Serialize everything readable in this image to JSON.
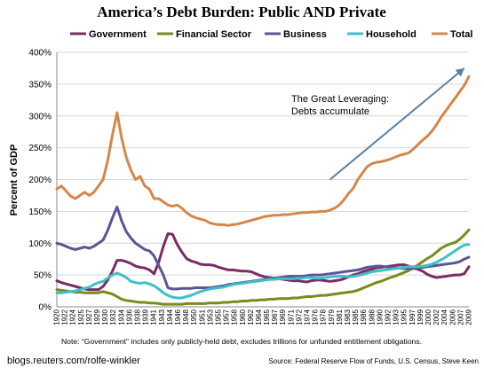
{
  "chart_data": {
    "type": "line",
    "title": "America’s Debt Burden:  Public AND Private",
    "xlabel": "",
    "ylabel": "Percent of GDP",
    "ylim": [
      0,
      400
    ],
    "y_ticks": [
      "0%",
      "50%",
      "100%",
      "150%",
      "200%",
      "250%",
      "300%",
      "350%",
      "400%"
    ],
    "x_ticks": [
      "1920",
      "1922",
      "1924",
      "1925",
      "1927",
      "1929",
      "1930",
      "1932",
      "1934",
      "1936",
      "1938",
      "1939",
      "1941",
      "1943",
      "1944",
      "1946",
      "1948",
      "1950",
      "1951",
      "1953",
      "1955",
      "1957",
      "1958",
      "1960",
      "1962",
      "1964",
      "1965",
      "1967",
      "1969",
      "1971",
      "1972",
      "1974",
      "1976",
      "1978",
      "1979",
      "1981",
      "1983",
      "1985",
      "1986",
      "1988",
      "1990",
      "1992",
      "1993",
      "1995",
      "1997",
      "1999",
      "2000",
      "2002",
      "2004",
      "2006",
      "2007",
      "2009"
    ],
    "legend_position": "top",
    "annotation": {
      "lines": [
        "The Great Leveraging:",
        "Debts accumulate"
      ],
      "arrow_from": [
        1979,
        200
      ],
      "arrow_to": [
        2008,
        375
      ]
    },
    "x": [
      1920,
      1921,
      1922,
      1923,
      1924,
      1925,
      1926,
      1927,
      1928,
      1929,
      1930,
      1931,
      1932,
      1933,
      1934,
      1935,
      1936,
      1937,
      1938,
      1939,
      1940,
      1941,
      1942,
      1943,
      1944,
      1945,
      1946,
      1947,
      1948,
      1949,
      1950,
      1951,
      1952,
      1953,
      1954,
      1955,
      1956,
      1957,
      1958,
      1959,
      1960,
      1961,
      1962,
      1963,
      1964,
      1965,
      1966,
      1967,
      1968,
      1969,
      1970,
      1971,
      1972,
      1973,
      1974,
      1975,
      1976,
      1977,
      1978,
      1979,
      1980,
      1981,
      1982,
      1983,
      1984,
      1985,
      1986,
      1987,
      1988,
      1989,
      1990,
      1991,
      1992,
      1993,
      1994,
      1995,
      1996,
      1997,
      1998,
      1999,
      2000,
      2001,
      2002,
      2003,
      2004,
      2005,
      2006,
      2007,
      2008,
      2009
    ],
    "series": [
      {
        "name": "Government",
        "color": "#7b2c62",
        "values": [
          41,
          38,
          36,
          34,
          32,
          30,
          28,
          27,
          27,
          27,
          32,
          42,
          56,
          73,
          73,
          71,
          68,
          64,
          62,
          61,
          58,
          52,
          70,
          95,
          115,
          114,
          98,
          86,
          76,
          72,
          70,
          67,
          66,
          66,
          65,
          62,
          60,
          58,
          58,
          57,
          56,
          56,
          55,
          52,
          49,
          47,
          46,
          45,
          44,
          43,
          42,
          41,
          41,
          40,
          39,
          41,
          42,
          42,
          41,
          40,
          41,
          42,
          44,
          47,
          50,
          52,
          55,
          57,
          59,
          61,
          62,
          63,
          64,
          65,
          66,
          66,
          64,
          61,
          59,
          56,
          51,
          48,
          46,
          47,
          48,
          49,
          50,
          50,
          52,
          63
        ]
      },
      {
        "name": "Financial Sector",
        "color": "#7a8a1c",
        "values": [
          27,
          26,
          25,
          24,
          23,
          23,
          22,
          22,
          22,
          22,
          24,
          22,
          20,
          16,
          12,
          10,
          9,
          8,
          7,
          7,
          6,
          6,
          5,
          4,
          4,
          4,
          4,
          4,
          5,
          5,
          5,
          5,
          5,
          6,
          6,
          6,
          7,
          7,
          8,
          8,
          9,
          9,
          10,
          10,
          11,
          11,
          12,
          12,
          13,
          13,
          13,
          14,
          14,
          15,
          16,
          16,
          17,
          18,
          18,
          19,
          20,
          21,
          22,
          23,
          24,
          26,
          29,
          32,
          35,
          38,
          40,
          43,
          46,
          48,
          51,
          54,
          57,
          61,
          66,
          71,
          76,
          80,
          86,
          92,
          96,
          99,
          101,
          106,
          113,
          121
        ]
      },
      {
        "name": "Business",
        "color": "#5b5596",
        "values": [
          100,
          98,
          95,
          92,
          90,
          92,
          94,
          92,
          95,
          100,
          105,
          120,
          140,
          157,
          135,
          118,
          108,
          100,
          95,
          90,
          88,
          80,
          65,
          50,
          30,
          28,
          28,
          29,
          29,
          29,
          30,
          30,
          30,
          30,
          31,
          32,
          33,
          35,
          36,
          37,
          38,
          39,
          40,
          41,
          42,
          43,
          44,
          45,
          46,
          47,
          48,
          48,
          48,
          48,
          49,
          50,
          50,
          50,
          51,
          52,
          53,
          54,
          55,
          56,
          57,
          58,
          60,
          62,
          63,
          64,
          64,
          63,
          62,
          61,
          61,
          60,
          60,
          60,
          61,
          62,
          63,
          64,
          65,
          66,
          67,
          68,
          69,
          71,
          75,
          78
        ]
      },
      {
        "name": "Household",
        "color": "#3ec0c8",
        "values": [
          22,
          22,
          23,
          24,
          25,
          27,
          29,
          31,
          35,
          38,
          40,
          45,
          50,
          53,
          50,
          46,
          40,
          38,
          37,
          38,
          36,
          33,
          28,
          22,
          18,
          15,
          14,
          14,
          16,
          18,
          21,
          24,
          26,
          28,
          29,
          30,
          31,
          33,
          35,
          36,
          37,
          38,
          39,
          40,
          41,
          42,
          43,
          43,
          44,
          44,
          44,
          44,
          45,
          45,
          46,
          46,
          45,
          45,
          46,
          47,
          48,
          48,
          48,
          47,
          48,
          49,
          51,
          53,
          55,
          56,
          57,
          58,
          59,
          60,
          61,
          62,
          63,
          63,
          63,
          64,
          65,
          67,
          70,
          74,
          78,
          83,
          88,
          93,
          97,
          98
        ]
      },
      {
        "name": "Total",
        "color": "#d4874a",
        "values": [
          185,
          190,
          182,
          174,
          170,
          175,
          180,
          175,
          180,
          190,
          200,
          230,
          270,
          305,
          265,
          235,
          215,
          200,
          205,
          190,
          185,
          170,
          170,
          165,
          160,
          158,
          160,
          155,
          148,
          143,
          140,
          138,
          136,
          132,
          130,
          129,
          129,
          128,
          129,
          130,
          132,
          134,
          136,
          138,
          140,
          142,
          143,
          144,
          144,
          145,
          145,
          146,
          147,
          148,
          148,
          149,
          149,
          150,
          150,
          152,
          155,
          160,
          168,
          178,
          186,
          200,
          210,
          220,
          225,
          227,
          228,
          230,
          232,
          235,
          238,
          240,
          242,
          248,
          255,
          262,
          268,
          276,
          286,
          298,
          308,
          318,
          328,
          338,
          348,
          362
        ]
      }
    ]
  },
  "note": "Note: “Government” includes only publicly-held debt, excludes trillions for unfunded entitlement obligations.",
  "byline": "blogs.reuters.com/rolfe-winkler",
  "source": "Source: Federal Reserve Flow of Funds, U.S. Census, Steve Keen"
}
